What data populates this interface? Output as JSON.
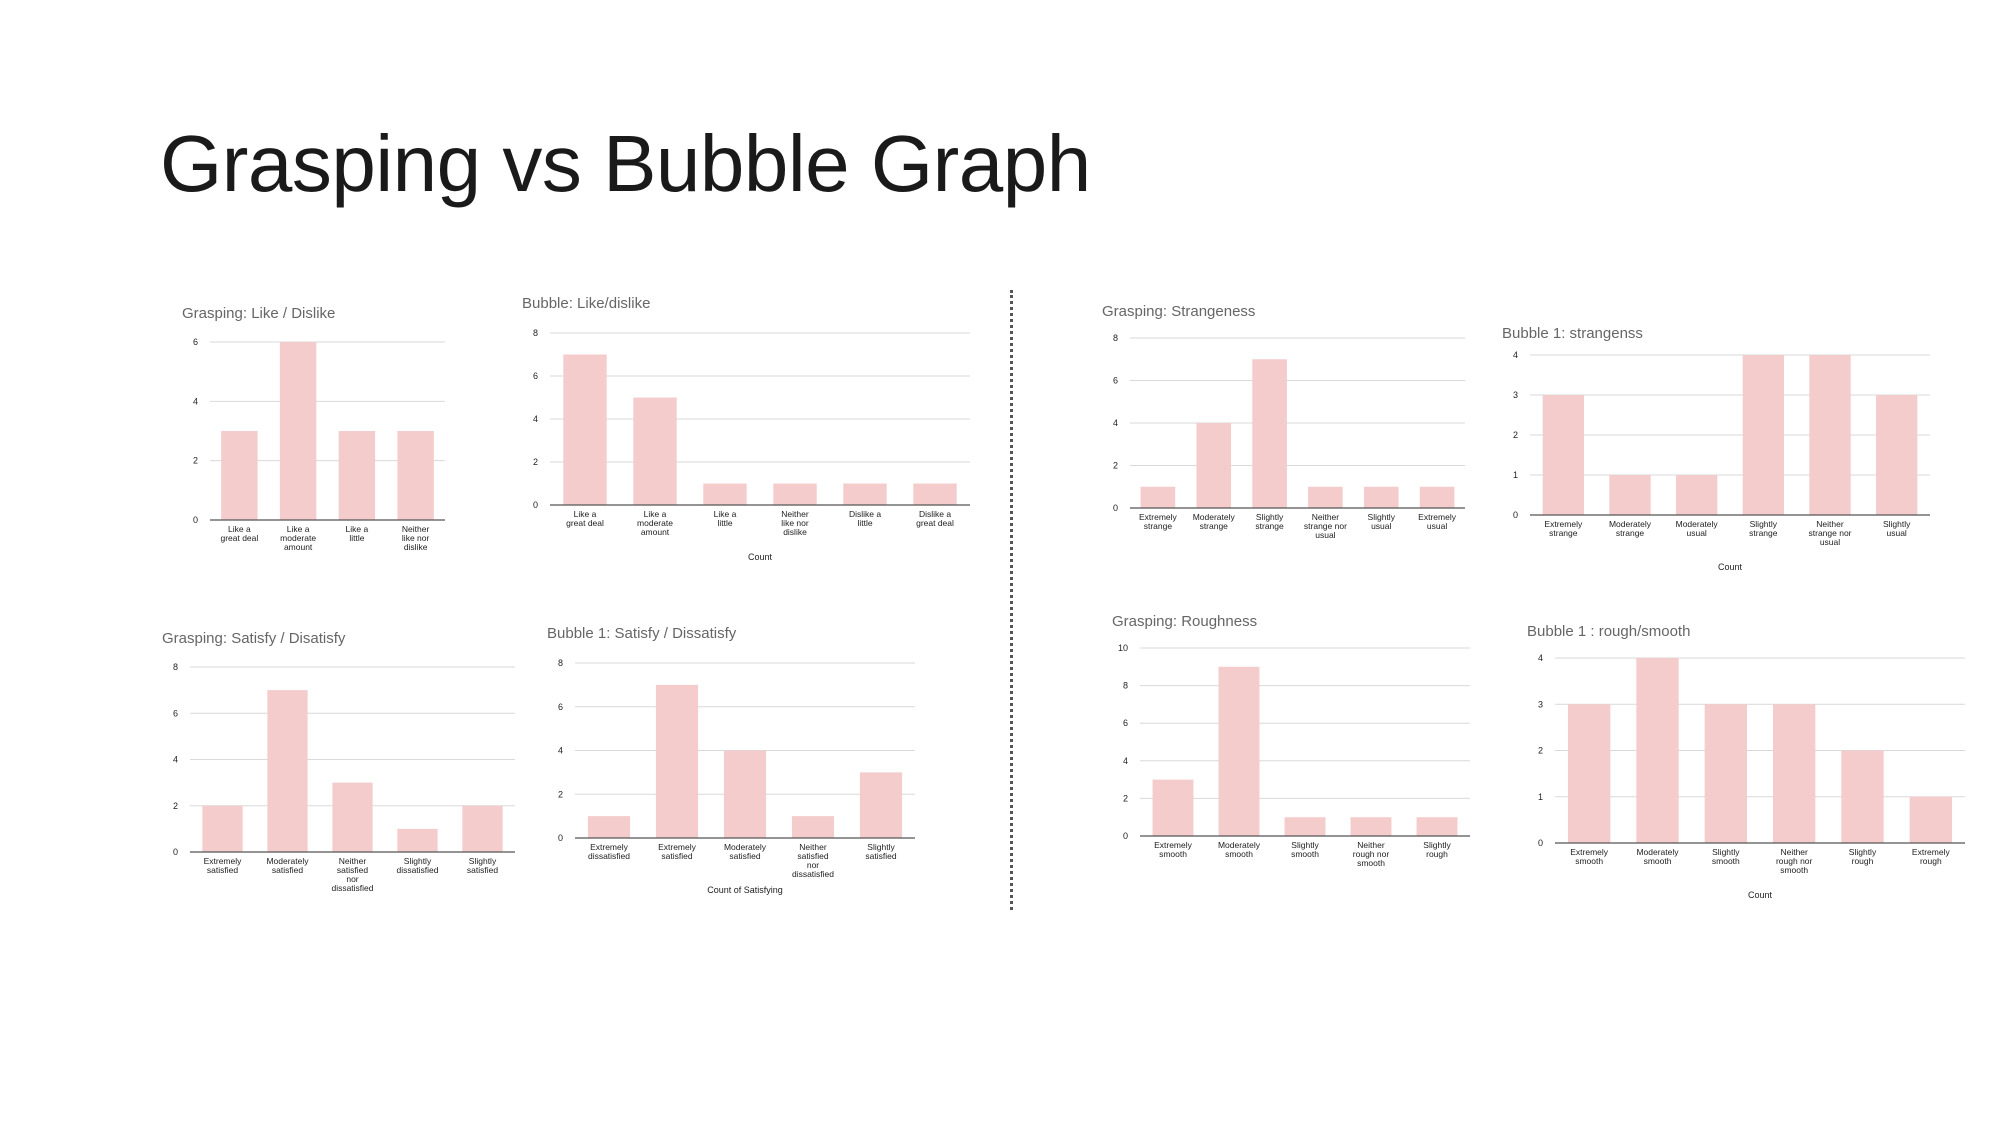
{
  "slide": {
    "title": "Grasping vs Bubble Graph"
  },
  "colors": {
    "bar": "#f4cccc",
    "grid": "#d9d9d9",
    "axis": "#555555",
    "title_text": "#666666",
    "label_text": "#222222"
  },
  "chart_data": [
    {
      "type": "bar",
      "title": "Grasping: Like / Dislike",
      "xlabel": "",
      "categories": [
        "Like a great deal",
        "Like a moderate amount",
        "Like a little",
        "Neither like nor dislike"
      ],
      "values": [
        3,
        6,
        3,
        3
      ],
      "ylim": [
        0,
        6
      ],
      "yticks": [
        0,
        2,
        4,
        6
      ]
    },
    {
      "type": "bar",
      "title": "Bubble: Like/dislike",
      "xlabel": "Count",
      "categories": [
        "Like a great deal",
        "Like a moderate amount",
        "Like a little",
        "Neither like nor dislike",
        "Dislike a little",
        "Dislike a great deal"
      ],
      "values": [
        7,
        5,
        1,
        1,
        1,
        1
      ],
      "ylim": [
        0,
        8
      ],
      "yticks": [
        0,
        2,
        4,
        6,
        8
      ]
    },
    {
      "type": "bar",
      "title": "Grasping: Satisfy / Disatisfy",
      "xlabel": "",
      "categories": [
        "Extremely satisfied",
        "Moderately satisfied",
        "Neither satisfied nor dissatisfied",
        "Slightly dissatisfied",
        "Slightly satisfied"
      ],
      "values": [
        2,
        7,
        3,
        1,
        2
      ],
      "ylim": [
        0,
        8
      ],
      "yticks": [
        0,
        2,
        4,
        6,
        8
      ]
    },
    {
      "type": "bar",
      "title": "Bubble 1: Satisfy / Dissatisfy",
      "xlabel": "Count of Satisfying",
      "categories": [
        "Extremely dissatisfied",
        "Extremely satisfied",
        "Moderately satisfied",
        "Neither satisfied nor dissatisfied",
        "Slightly satisfied"
      ],
      "values": [
        1,
        7,
        4,
        1,
        3
      ],
      "ylim": [
        0,
        8
      ],
      "yticks": [
        0,
        2,
        4,
        6,
        8
      ]
    },
    {
      "type": "bar",
      "title": "Grasping: Strangeness",
      "xlabel": "",
      "categories": [
        "Extremely strange",
        "Moderately strange",
        "Slightly strange",
        "Neither strange nor usual",
        "Slightly usual",
        "Extremely usual"
      ],
      "values": [
        1,
        4,
        7,
        1,
        1,
        1
      ],
      "ylim": [
        0,
        8
      ],
      "yticks": [
        0,
        2,
        4,
        6,
        8
      ]
    },
    {
      "type": "bar",
      "title": "Bubble 1: strangenss",
      "xlabel": "Count",
      "categories": [
        "Extremely strange",
        "Moderately strange",
        "Moderately usual",
        "Slightly strange",
        "Neither strange nor usual",
        "Slightly usual"
      ],
      "values": [
        3,
        1,
        1,
        4,
        4,
        3
      ],
      "ylim": [
        0,
        4
      ],
      "yticks": [
        0,
        1,
        2,
        3,
        4
      ]
    },
    {
      "type": "bar",
      "title": "Grasping: Roughness",
      "xlabel": "",
      "categories": [
        "Extremely smooth",
        "Moderately smooth",
        "Slightly smooth",
        "Neither rough nor smooth",
        "Slightly rough"
      ],
      "values": [
        3,
        9,
        1,
        1,
        1
      ],
      "ylim": [
        0,
        10
      ],
      "yticks": [
        0,
        2,
        4,
        6,
        8,
        10
      ]
    },
    {
      "type": "bar",
      "title": "Bubble 1 : rough/smooth",
      "xlabel": "Count",
      "categories": [
        "Extremely smooth",
        "Moderately smooth",
        "Slightly smooth",
        "Neither rough nor smooth",
        "Slightly rough",
        "Extremely rough"
      ],
      "values": [
        3,
        4,
        3,
        3,
        2,
        1
      ],
      "ylim": [
        0,
        4
      ],
      "yticks": [
        0,
        1,
        2,
        3,
        4
      ]
    }
  ]
}
